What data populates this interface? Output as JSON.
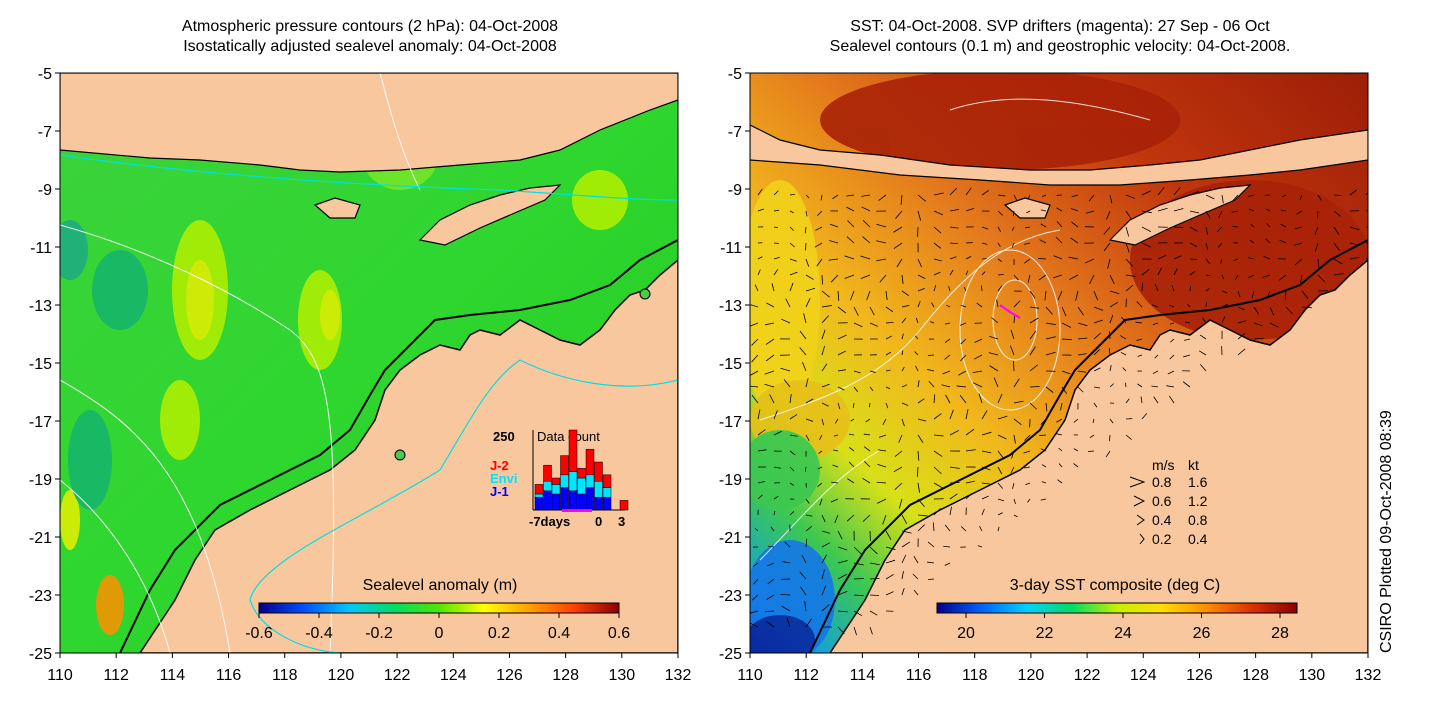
{
  "left_panel": {
    "title_line1": "Atmospheric pressure contours (2 hPa): 04-Oct-2008",
    "title_line2": "Isostatically adjusted sealevel anomaly: 04-Oct-2008",
    "colorbar_label": "Sealevel anomaly (m)",
    "colorbar_ticks": [
      "-0.6",
      "-0.4",
      "-0.2",
      "0",
      "0.2",
      "0.4",
      "0.6"
    ],
    "colorbar_colors": [
      "#00008c",
      "#0050ff",
      "#00c8ff",
      "#00dc64",
      "#50e600",
      "#ffff00",
      "#ffa000",
      "#ff4000",
      "#8c0000"
    ]
  },
  "right_panel": {
    "title_line1": "SST: 04-Oct-2008. SVP drifters (magenta): 27 Sep - 06 Oct",
    "title_line2": "Sealevel contours (0.1 m) and geostrophic velocity: 04-Oct-2008.",
    "colorbar_label": "3-day SST composite (deg C)",
    "colorbar_ticks": [
      "20",
      "22",
      "24",
      "26",
      "28"
    ],
    "colorbar_colors": [
      "#00008c",
      "#0064ff",
      "#00d2ff",
      "#00dc64",
      "#c8f000",
      "#ffdc00",
      "#ff8c00",
      "#dc3200",
      "#8c0000"
    ],
    "velocity_legend": {
      "header_ms": "m/s",
      "header_kt": "kt",
      "rows": [
        {
          "ms": "0.8",
          "kt": "1.6"
        },
        {
          "ms": "0.6",
          "kt": "1.2"
        },
        {
          "ms": "0.4",
          "kt": "0.8"
        },
        {
          "ms": "0.2",
          "kt": "0.4"
        }
      ]
    }
  },
  "axes": {
    "y_ticks": [
      "-5",
      "-7",
      "-9",
      "-11",
      "-13",
      "-15",
      "-17",
      "-19",
      "-21",
      "-23",
      "-25"
    ],
    "x_ticks": [
      "110",
      "112",
      "114",
      "116",
      "118",
      "120",
      "122",
      "124",
      "126",
      "128",
      "130",
      "132"
    ]
  },
  "data_count_inset": {
    "title": "Data count",
    "y_label": "250",
    "series": [
      {
        "name": "J-2",
        "color": "#ff0000"
      },
      {
        "name": "Envi",
        "color": "#00e5ff"
      },
      {
        "name": "J-1",
        "color": "#0000ff"
      }
    ],
    "x_label_left": "-7days",
    "x_label_zero": "0",
    "x_label_right": "3",
    "day_offsets": [
      -7,
      -6,
      -5,
      -4,
      -3,
      -2,
      -1,
      0,
      1,
      2,
      3
    ],
    "counts": {
      "J-1": [
        40,
        60,
        50,
        70,
        60,
        50,
        70,
        40,
        40,
        0,
        0
      ],
      "Envi": [
        10,
        30,
        30,
        40,
        60,
        50,
        40,
        50,
        30,
        0,
        0
      ],
      "J-2": [
        30,
        50,
        20,
        60,
        130,
        30,
        80,
        60,
        40,
        0,
        30
      ]
    },
    "y_max": 250
  },
  "credit": "CSIRO Plotted 09-Oct-2008 08:39",
  "map_colors": {
    "land": "#f9c79e",
    "ocean_green": "#2fd62f",
    "sst_red": "#b42a0a",
    "sst_orange": "#e8801e",
    "sst_yellow": "#f2d21a",
    "sst_blue": "#1e78e6"
  }
}
